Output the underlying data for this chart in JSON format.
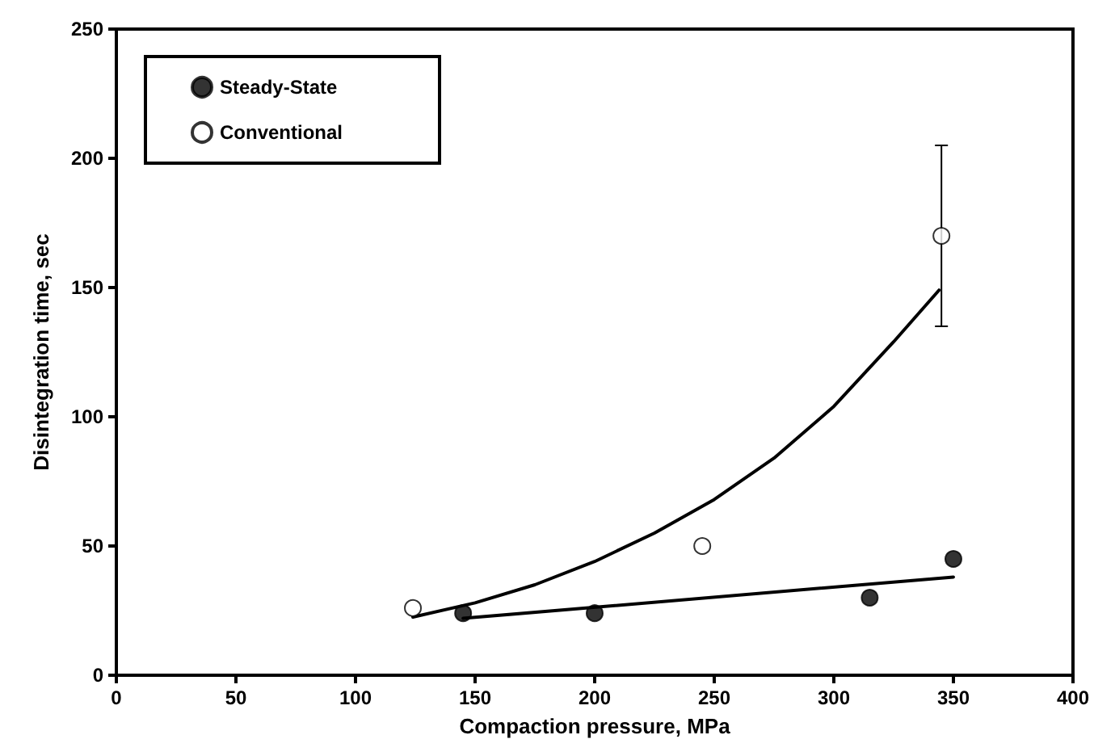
{
  "chart_data": {
    "type": "scatter",
    "xlabel": "Compaction pressure, MPa",
    "ylabel": "Disintegration time, sec",
    "xlim": [
      0,
      400
    ],
    "xticks": [
      0,
      50,
      100,
      150,
      200,
      250,
      300,
      350,
      400
    ],
    "ylim": [
      0,
      250
    ],
    "yticks": [
      0,
      50,
      100,
      150,
      200,
      250
    ],
    "grid": false,
    "legend": "top left",
    "marker": "circle",
    "series": [
      {
        "name": "Steady-State",
        "color": "#000000",
        "x": [
          145,
          200,
          315,
          350
        ],
        "values": [
          24,
          24,
          30,
          45
        ]
      },
      {
        "name": "Conventional",
        "color": "#ffffff",
        "x": [
          124,
          245,
          345
        ],
        "values": [
          26,
          50,
          170
        ],
        "errors": [
          null,
          null,
          35
        ]
      },
      {
        "type": "line",
        "color": "#000000",
        "marker": "none",
        "x": [
          145,
          350
        ],
        "values": [
          22,
          38
        ]
      },
      {
        "type": "line",
        "color": "#000000",
        "marker": "none",
        "x": [
          124,
          150,
          175,
          200,
          225,
          250,
          275,
          300,
          325,
          344
        ],
        "values": [
          22.5,
          28,
          35,
          44,
          55,
          68,
          84,
          104,
          129,
          149
        ]
      }
    ]
  }
}
